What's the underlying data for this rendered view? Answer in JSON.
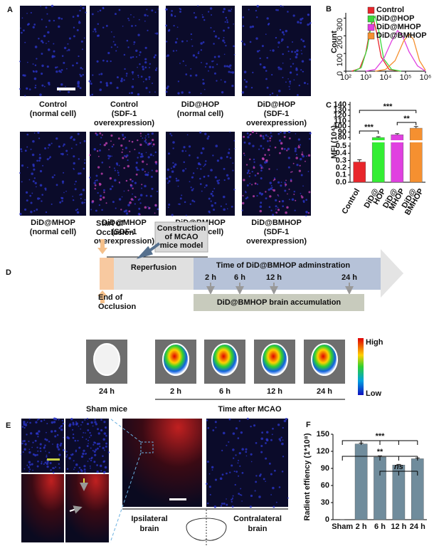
{
  "panel_a": {
    "label": "A",
    "images": [
      {
        "caption": [
          "Control",
          "(normal cell)"
        ]
      },
      {
        "caption": [
          "Control",
          "(SDF-1",
          "overexpression)"
        ]
      },
      {
        "caption": [
          "DiD@HOP",
          "(normal cell)"
        ]
      },
      {
        "caption": [
          "DiD@HOP",
          "(SDF-1",
          "overexpression)"
        ]
      },
      {
        "caption": [
          "DiD@MHOP",
          "(normal cell)"
        ]
      },
      {
        "caption": [
          "DiD@MHOP",
          "(SDF-1",
          "overexpression)"
        ]
      },
      {
        "caption": [
          "DiD@BMHOP",
          "(normal cell)"
        ]
      },
      {
        "caption": [
          "DiD@BMHOP",
          "(SDF-1",
          "overexpression)"
        ]
      }
    ]
  },
  "chart_data": [
    {
      "type": "line",
      "panel_label": "B",
      "y_label": "Count",
      "xscale": "log",
      "xlim": [
        100,
        1000000
      ],
      "xticks": [
        {
          "value": 100,
          "label": "10²"
        },
        {
          "value": 1000,
          "label": "10³"
        },
        {
          "value": 10000,
          "label": "10⁴"
        },
        {
          "value": 100000,
          "label": "10⁵"
        },
        {
          "value": 1000000,
          "label": "10⁶"
        }
      ],
      "ylim": [
        0,
        330
      ],
      "yticks": [
        0,
        100,
        200,
        300
      ],
      "series": [
        {
          "name": "Control",
          "color": "#e8262b",
          "x": [
            200,
            500,
            1000,
            1800,
            2500,
            3500,
            6000,
            15000,
            50000
          ],
          "values": [
            0,
            15,
            100,
            260,
            290,
            220,
            80,
            10,
            0
          ]
        },
        {
          "name": "DiD@HOP",
          "color": "#3cd83c",
          "x": [
            250,
            600,
            1200,
            2000,
            3000,
            4500,
            8000,
            20000,
            60000
          ],
          "values": [
            0,
            20,
            130,
            280,
            310,
            230,
            70,
            10,
            0
          ]
        },
        {
          "name": "DiD@MHOP",
          "color": "#e040e0",
          "x": [
            1000,
            3000,
            8000,
            20000,
            40000,
            70000,
            150000,
            400000,
            1000000
          ],
          "values": [
            0,
            10,
            70,
            170,
            230,
            200,
            110,
            30,
            0
          ]
        },
        {
          "name": "DiD@BMHOP",
          "color": "#f59030",
          "x": [
            3000,
            10000,
            30000,
            80000,
            150000,
            250000,
            500000,
            1000000
          ],
          "values": [
            0,
            10,
            60,
            170,
            210,
            180,
            60,
            5
          ]
        }
      ]
    },
    {
      "type": "bar",
      "panel_label": "C",
      "y_label": "MFI (10⁴)",
      "categories": [
        [
          "Control"
        ],
        [
          "DiD@",
          "HOP"
        ],
        [
          "DiD@",
          "MHOP"
        ],
        [
          "DiD@",
          "BMHOP"
        ]
      ],
      "values": [
        0.28,
        80,
        85,
        97
      ],
      "errors": [
        0.03,
        1.5,
        2,
        3
      ],
      "colors": [
        "#e8262b",
        "#33ee33",
        "#e040e0",
        "#f59030"
      ],
      "ylim_lower": [
        0,
        0.55
      ],
      "ylim_upper": [
        75,
        145
      ],
      "yticks_lower": [
        {
          "value": 0,
          "label": "0.0"
        },
        0.1,
        0.2,
        0.3,
        0.4,
        0.5
      ],
      "yticks_upper": [
        80,
        90,
        100,
        110,
        120,
        130,
        140
      ],
      "annotations": [
        "***",
        "***",
        "**"
      ]
    },
    {
      "type": "bar",
      "panel_label": "F",
      "y_label": "Radient effiency (1*10⁸)",
      "categories": [
        [
          "Sham"
        ],
        [
          "2 h"
        ],
        [
          "6 h"
        ],
        [
          "12 h"
        ],
        [
          "24 h"
        ]
      ],
      "values": [
        0,
        133,
        110,
        96,
        107
      ],
      "errors": [
        0,
        1.5,
        2,
        1,
        1.5
      ],
      "color": "#708c9c",
      "ylim": [
        0,
        150
      ],
      "yticks": [
        0,
        30,
        60,
        90,
        120,
        150
      ],
      "annotations": [
        "***",
        "**",
        "ns"
      ]
    }
  ],
  "panel_d": {
    "label": "D",
    "start_of_occlusion": [
      "Start of",
      "Occlusion"
    ],
    "end_of_occlusion": [
      "End of",
      "Occlusion"
    ],
    "construction": [
      "Construction",
      "of MCAO",
      "mice model"
    ],
    "reperfusion": "Reperfusion",
    "administration": "Time of DiD@BMHOP adminstration",
    "time_points": [
      "2 h",
      "6 h",
      "12 h",
      "24 h"
    ],
    "accumulation": "DiD@BMHOP brain accumulation",
    "sham_time": "24 h",
    "imaging_times": [
      "2 h",
      "6 h",
      "12 h",
      "24 h"
    ],
    "sham_label": "Sham mice",
    "mcao_label": "Time after MCAO",
    "colorbar": {
      "high": "High",
      "low": "Low"
    }
  },
  "panel_e": {
    "label": "E",
    "ipsilateral": [
      "Ipsilateral",
      "brain"
    ],
    "contralateral": [
      "Contralateral",
      "brain"
    ]
  }
}
